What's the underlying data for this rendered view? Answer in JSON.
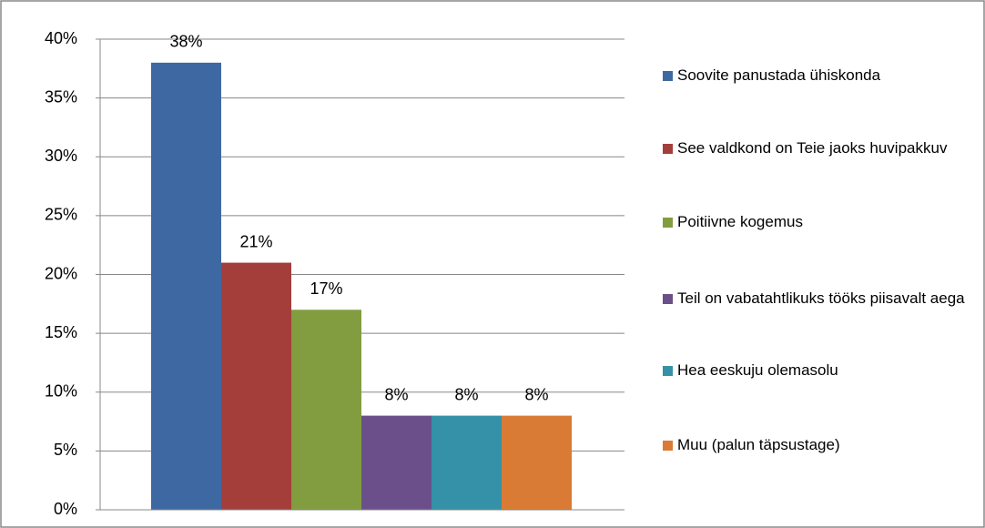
{
  "chart_data": {
    "type": "bar",
    "series": [
      {
        "name": "Soovite panustada ühiskonda",
        "color": "#3e68a2",
        "values": [
          38
        ],
        "value_labels": [
          "38%"
        ]
      },
      {
        "name": "See valdkond on Teie jaoks huvipakkuv",
        "color": "#a33e3b",
        "values": [
          21
        ],
        "value_labels": [
          "21%"
        ]
      },
      {
        "name": "Poitiivne kogemus",
        "color": "#829d3f",
        "values": [
          17
        ],
        "value_labels": [
          "17%"
        ]
      },
      {
        "name": "Teil on vabatahtlikuks tööks piisavalt aega",
        "color": "#6a4f8a",
        "values": [
          8
        ],
        "value_labels": [
          "8%"
        ]
      },
      {
        "name": "Hea eeskuju olemasolu",
        "color": "#3591a8",
        "values": [
          8
        ],
        "value_labels": [
          "8%"
        ]
      },
      {
        "name": "Muu (palun täpsustage)",
        "color": "#d97b35",
        "values": [
          8
        ],
        "value_labels": [
          "8%"
        ]
      }
    ],
    "ylim": [
      0,
      40
    ],
    "yticks": [
      {
        "value": 0,
        "label": "0%"
      },
      {
        "value": 5,
        "label": "5%"
      },
      {
        "value": 10,
        "label": "10%"
      },
      {
        "value": 15,
        "label": "15%"
      },
      {
        "value": 20,
        "label": "20%"
      },
      {
        "value": 25,
        "label": "25%"
      },
      {
        "value": 30,
        "label": "30%"
      },
      {
        "value": 35,
        "label": "35%"
      },
      {
        "value": 40,
        "label": "40%"
      }
    ],
    "grid": true,
    "legend": "right"
  }
}
